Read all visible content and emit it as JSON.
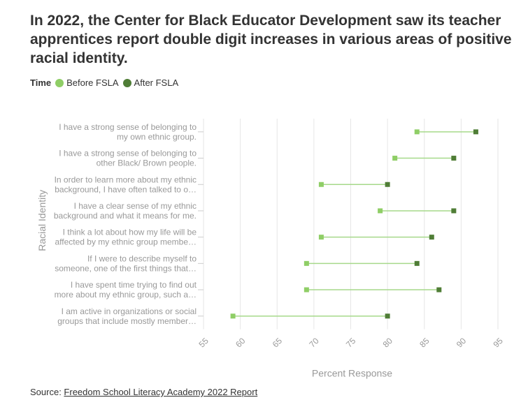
{
  "title": "In 2022, the Center for Black Educator Development saw its teacher apprentices report double digit increases in various areas of positive racial identity.",
  "legend": {
    "title": "Time",
    "items": [
      {
        "label": "Before FSLA",
        "color": "#8fce66"
      },
      {
        "label": "After FSLA",
        "color": "#4f7d36"
      }
    ]
  },
  "source": {
    "prefix": "Source: ",
    "link_text": "Freedom School Literacy Academy 2022 Report"
  },
  "chart_data": {
    "type": "dumbbell",
    "title": "In 2022, the Center for Black Educator Development saw its teacher apprentices report double digit increases in various areas of positive racial identity.",
    "xlabel": "Percent Response",
    "ylabel": "Racial Identity",
    "xlim": [
      55,
      95
    ],
    "xticks": [
      55,
      60,
      65,
      70,
      75,
      80,
      85,
      90,
      95
    ],
    "grid": true,
    "series": [
      {
        "name": "Before FSLA",
        "color": "#8fce66",
        "line_color": "#a6d98a"
      },
      {
        "name": "After FSLA",
        "color": "#4f7d36"
      }
    ],
    "categories": [
      {
        "lines": [
          "I have a strong sense of belonging to",
          "my own ethnic group."
        ],
        "before": 84,
        "after": 92
      },
      {
        "lines": [
          "I have a strong sense of belonging to",
          "other Black/ Brown people."
        ],
        "before": 81,
        "after": 89
      },
      {
        "lines": [
          "In order to learn more about my ethnic",
          "background, I have often talked to o…"
        ],
        "before": 71,
        "after": 80
      },
      {
        "lines": [
          "I have a clear sense of my ethnic",
          "background and what it means for me."
        ],
        "before": 79,
        "after": 89
      },
      {
        "lines": [
          "I think a lot about how my life will be",
          "affected by my ethnic group membe…"
        ],
        "before": 71,
        "after": 86
      },
      {
        "lines": [
          "If I were to describe myself to",
          "someone, one of the first things that…"
        ],
        "before": 69,
        "after": 84
      },
      {
        "lines": [
          "I have spent time trying to find out",
          "more about my ethnic group, such a…"
        ],
        "before": 69,
        "after": 87
      },
      {
        "lines": [
          "I am active in organizations or social",
          "groups that include mostly member…"
        ],
        "before": 59,
        "after": 80
      }
    ]
  }
}
